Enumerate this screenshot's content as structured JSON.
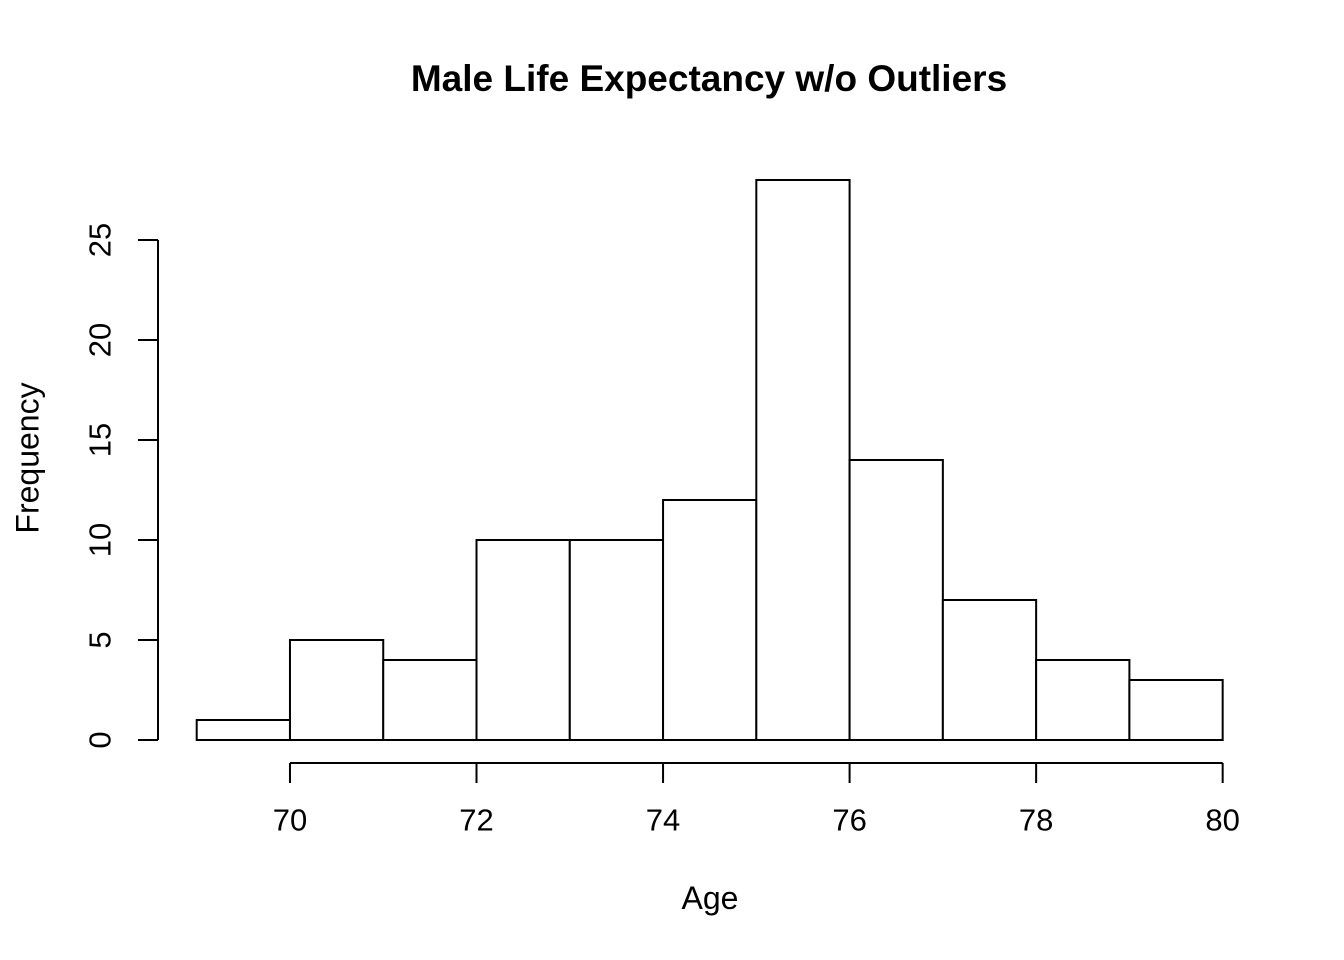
{
  "figure": {
    "background": "#ffffff"
  },
  "chart_data": {
    "type": "bar",
    "subtype": "histogram",
    "title": "Male Life Expectancy w/o Outliers",
    "xlabel": "Age",
    "ylabel": "Frequency",
    "breaks": [
      69,
      70,
      71,
      72,
      73,
      74,
      75,
      76,
      77,
      78,
      79,
      80
    ],
    "counts": [
      1,
      5,
      4,
      10,
      10,
      12,
      28,
      14,
      7,
      4,
      3
    ],
    "x_ticks": [
      70,
      72,
      74,
      76,
      78,
      80
    ],
    "y_ticks": [
      0,
      5,
      10,
      15,
      20,
      25
    ],
    "xlim": [
      69,
      80
    ],
    "ylim": [
      0,
      28
    ],
    "grid": "off",
    "legend": "none",
    "bar_fill": "#ffffff",
    "line_color": "#000000"
  }
}
